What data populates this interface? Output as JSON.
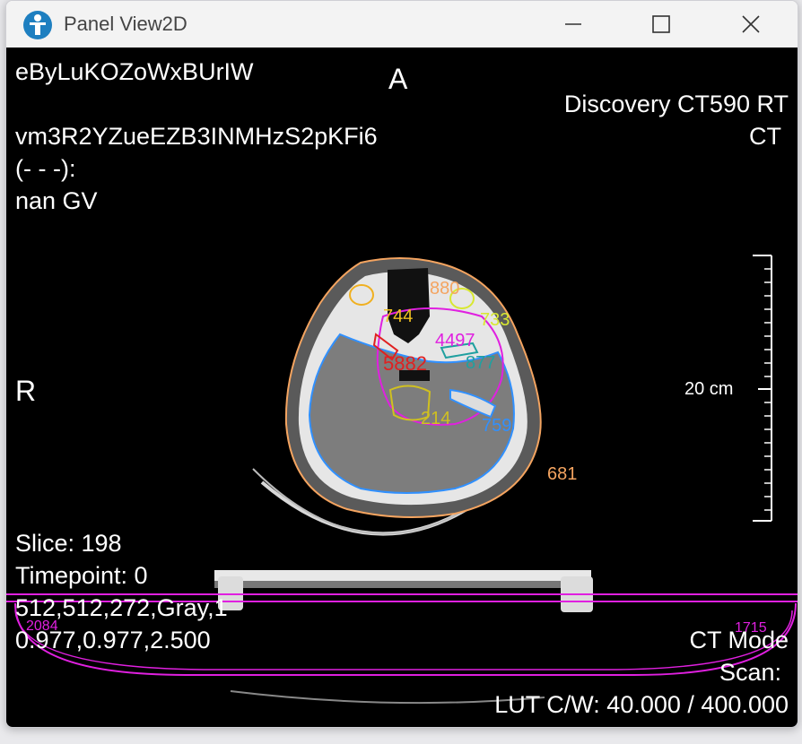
{
  "window": {
    "title": "Panel View2D",
    "icons": {
      "app": "app-logo-icon",
      "minimize": "minimize-icon",
      "maximize": "maximize-icon",
      "close": "close-icon"
    }
  },
  "overlay": {
    "top_left_line1": "eByLuKOZoWxBUrIW",
    "top_left_line2": "vm3R2YZueEZB3INMHzS2pKFi6",
    "top_left_line3": "(- - -):",
    "top_left_line4": "nan GV",
    "orientation_top": "A",
    "orientation_left": "R",
    "top_right_line1": "Discovery CT590 RT",
    "top_right_line2": "CT",
    "scale_label": "20 cm",
    "bottom_left_line1": "Slice: 198",
    "bottom_left_line2": "Timepoint: 0",
    "bottom_left_line3": "512,512,272,Gray,1",
    "bottom_left_line4": "0.977,0.977,2.500",
    "bottom_right_line1": "CT Mode",
    "bottom_right_line2": "Scan:",
    "bottom_right_line3": "LUT C/W: 40.000 / 400.000"
  },
  "contour_labels": [
    {
      "text": "880",
      "color": "#f4a460"
    },
    {
      "text": "744",
      "color": "#f0c020"
    },
    {
      "text": "733",
      "color": "#d8e830"
    },
    {
      "text": "4497",
      "color": "#e020e0"
    },
    {
      "text": "5882",
      "color": "#e02020"
    },
    {
      "text": "877",
      "color": "#20a0a0"
    },
    {
      "text": "214",
      "color": "#d0c020"
    },
    {
      "text": "759",
      "color": "#3090ff"
    },
    {
      "text": "681",
      "color": "#f4a460"
    },
    {
      "text": "2084",
      "color": "#e020e0"
    },
    {
      "text": "1715",
      "color": "#e020e0"
    }
  ]
}
